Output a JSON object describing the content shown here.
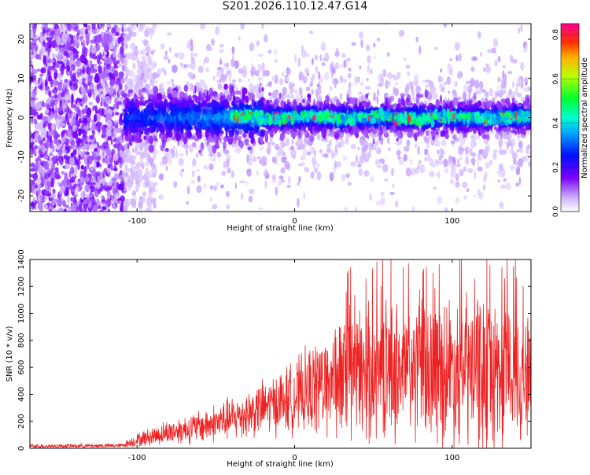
{
  "title": "S201.2026.110.12.47.G14",
  "chart_data": [
    {
      "type": "heatmap",
      "xlabel": "Height of straight line (km)",
      "ylabel": "Frequency (Hz)",
      "xlim": [
        -168,
        150
      ],
      "ylim": [
        -24,
        24
      ],
      "xticks": [
        -100,
        0,
        100
      ],
      "yticks": [
        -20,
        -10,
        0,
        10,
        20
      ],
      "colorbar": {
        "label": "Normalized spectral amplitude",
        "range": [
          0,
          0.85
        ],
        "ticks": [
          0.0,
          0.2,
          0.4,
          0.6,
          0.8
        ],
        "colormap": [
          "#ffffff",
          "#6a00f0",
          "#0000ff",
          "#00e0ff",
          "#00ff60",
          "#d0ff00",
          "#ff6000",
          "#ff0080"
        ]
      },
      "features": {
        "noise_region_x": [
          -168,
          -108
        ],
        "signal_center_hz": 0,
        "peak_amplitude": 0.85,
        "peak_x_range": [
          -20,
          100
        ]
      }
    },
    {
      "type": "line",
      "xlabel": "Height of straight line (km)",
      "ylabel": "SNR (10 * v/v)",
      "xlim": [
        -168,
        150
      ],
      "ylim": [
        0,
        1400
      ],
      "xticks": [
        -100,
        0,
        100
      ],
      "yticks": [
        0,
        200,
        400,
        600,
        800,
        1000,
        1200,
        1400
      ],
      "color": "#ee2222",
      "envelope": {
        "x": [
          -168,
          -110,
          -100,
          -80,
          -60,
          -40,
          -20,
          0,
          10,
          20,
          40,
          60,
          80,
          100,
          120,
          140,
          150
        ],
        "mean": [
          15,
          20,
          60,
          120,
          160,
          220,
          300,
          380,
          430,
          500,
          550,
          580,
          580,
          590,
          570,
          560,
          540
        ],
        "spread": [
          15,
          15,
          50,
          90,
          120,
          160,
          200,
          260,
          320,
          420,
          480,
          500,
          520,
          560,
          600,
          520,
          450
        ]
      }
    }
  ]
}
